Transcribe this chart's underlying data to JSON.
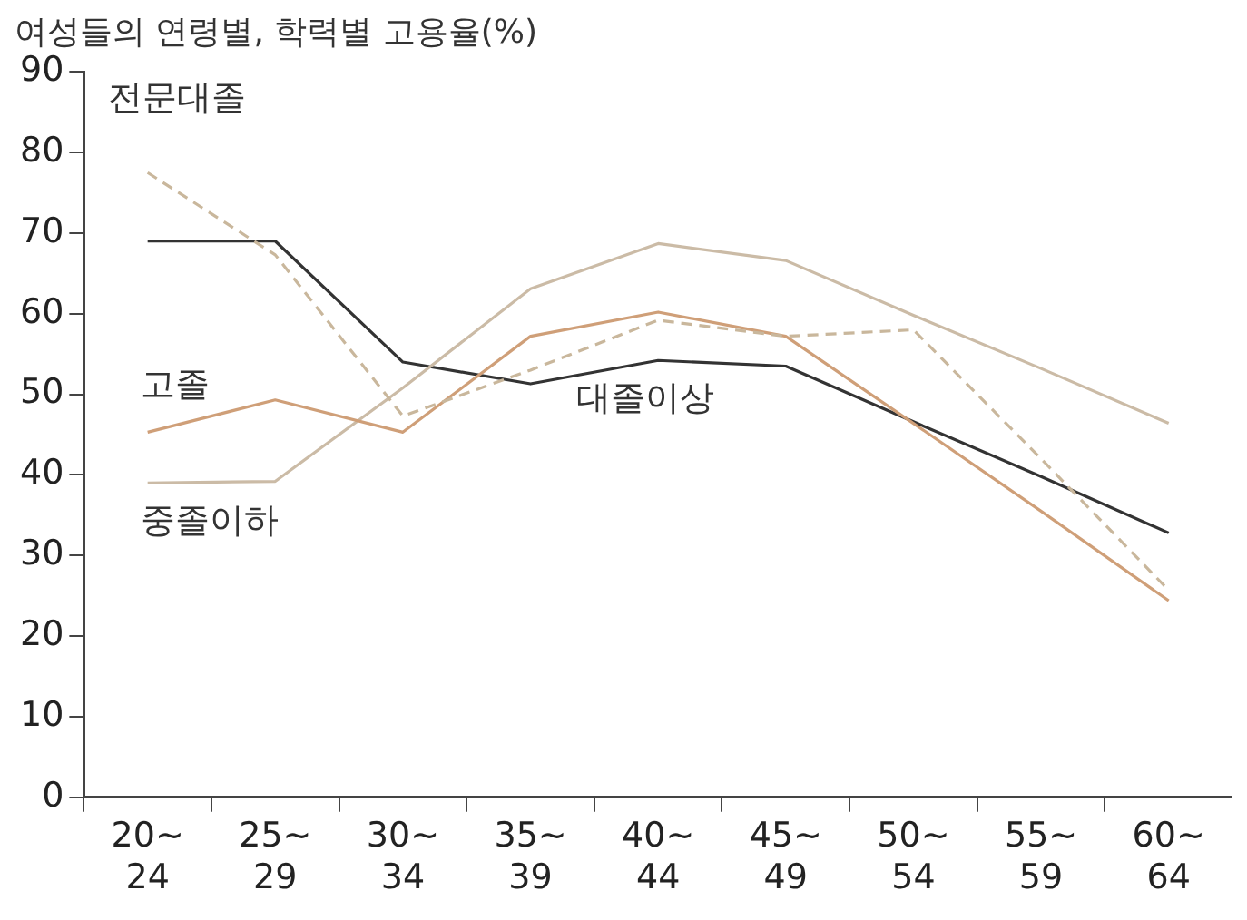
{
  "chart_data": {
    "type": "line",
    "title": "여성들의 연령별, 학력별 고용율(%)",
    "categories": [
      "20~\n24",
      "25~\n29",
      "30~\n34",
      "35~\n39",
      "40~\n44",
      "45~\n49",
      "50~\n54",
      "55~\n59",
      "60~\n64"
    ],
    "series": [
      {
        "name": "전문대졸",
        "color": "#c9b79c",
        "line_style": "dashed",
        "values": [
          77.5,
          67.3,
          47.3,
          53,
          59.2,
          57.2,
          58,
          42,
          25.7
        ]
      },
      {
        "name": "고졸",
        "color": "#cf9f78",
        "values": [
          45.3,
          49.3,
          45.3,
          57.2,
          60.2,
          57.2,
          46.4,
          35.5,
          24.4
        ]
      },
      {
        "name": "중졸이하",
        "color": "#cbbba6",
        "values": [
          39,
          39.2,
          50.8,
          63.1,
          68.7,
          66.6,
          59.8,
          53.2,
          46.4
        ]
      },
      {
        "name": "대졸이상",
        "color": "#333333",
        "values": [
          69,
          69,
          54,
          51.3,
          54.2,
          53.5,
          46.6,
          39.8,
          32.8
        ]
      }
    ],
    "ylim": [
      0,
      90
    ],
    "yticks": [
      0,
      10,
      20,
      30,
      40,
      50,
      60,
      70,
      80,
      90
    ],
    "grid": false,
    "legend": false,
    "marker": "none",
    "line_style": "solid"
  }
}
